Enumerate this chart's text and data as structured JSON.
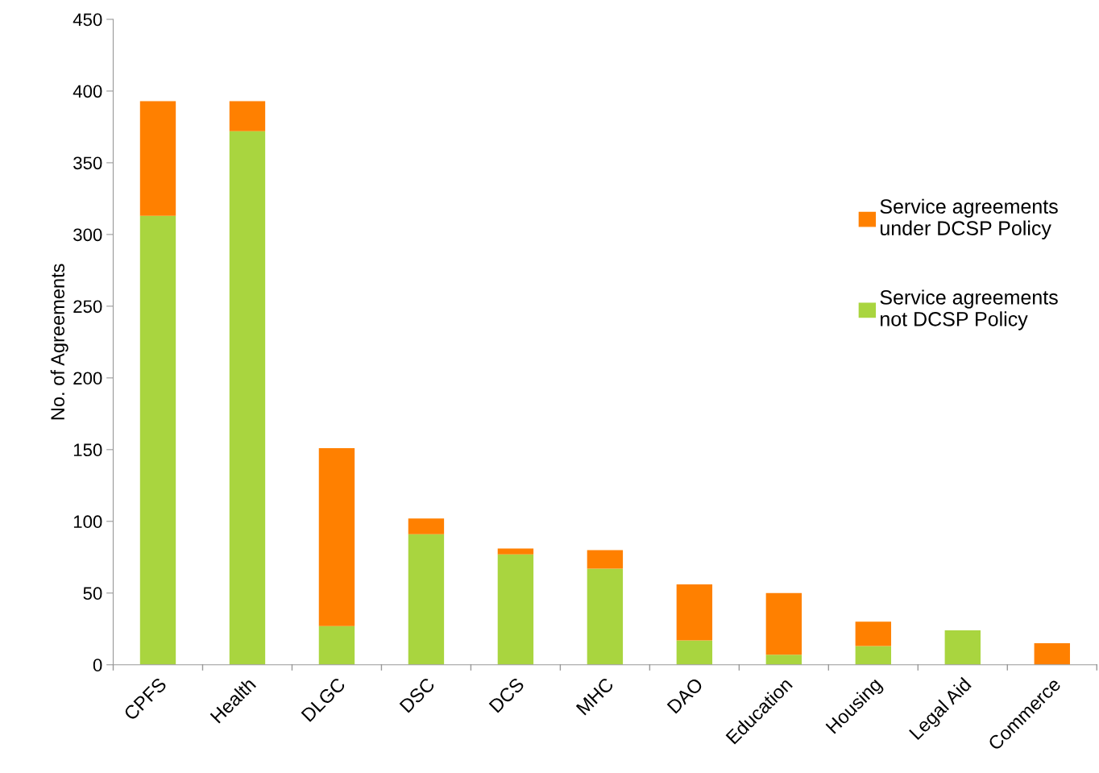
{
  "chart_data": {
    "type": "bar",
    "stacked": true,
    "ylabel": "No. of Agreements",
    "categories": [
      "CPFS",
      "Health",
      "DLGC",
      "DSC",
      "DCS",
      "MHC",
      "DAO",
      "Education",
      "Housing",
      "Legal Aid",
      "Commerce"
    ],
    "series": [
      {
        "name": "Service agreements not DCSP Policy",
        "color": "#a9d53f",
        "values": [
          313,
          372,
          27,
          91,
          77,
          67,
          17,
          7,
          13,
          24,
          0
        ]
      },
      {
        "name": "Service agreements under DCSP Policy",
        "color": "#ff8000",
        "values": [
          80,
          21,
          124,
          11,
          4,
          13,
          39,
          43,
          17,
          0,
          15
        ]
      }
    ],
    "ylim": [
      0,
      450
    ],
    "yticks": [
      0,
      50,
      100,
      150,
      200,
      250,
      300,
      350,
      400,
      450
    ],
    "grid": false,
    "legend": "right"
  }
}
